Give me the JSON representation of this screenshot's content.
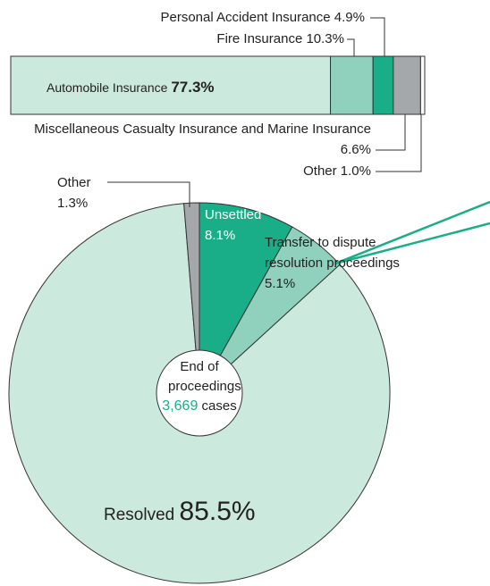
{
  "chart_data": [
    {
      "type": "stacked-bar",
      "series": [
        {
          "name": "Automobile Insurance",
          "color": "#cce9de",
          "values": [
            77.3
          ],
          "value_labels": [
            "77.3%"
          ]
        },
        {
          "name": "Fire Insurance",
          "color": "#8fd1bd",
          "values": [
            10.3
          ],
          "value_labels": [
            "10.3%"
          ]
        },
        {
          "name": "Personal Accident Insurance",
          "color": "#1aae88",
          "values": [
            4.9
          ],
          "value_labels": [
            "4.9%"
          ]
        },
        {
          "name": "Miscellaneous Casualty Insurance and Marine Insurance",
          "color": "#a5a8ab",
          "values": [
            6.6
          ],
          "value_labels": [
            "6.6%"
          ]
        },
        {
          "name": "Other",
          "color": "#ffffff",
          "values": [
            1.0
          ],
          "value_labels": [
            "1.0%"
          ]
        }
      ]
    },
    {
      "type": "pie",
      "categories": [
        "Unsettled",
        "Transfer to dispute resolution proceedings",
        "Resolved",
        "Other"
      ],
      "values": [
        8.1,
        5.1,
        85.5,
        1.3
      ],
      "value_labels": [
        "8.1%",
        "5.1%",
        "85.5%",
        "1.3%"
      ],
      "colors": [
        "#1aae88",
        "#8fd1bd",
        "#cce9de",
        "#a5a8ab"
      ],
      "center_label": "End of proceedings",
      "total": 3669,
      "total_label": "3,669",
      "total_unit": "cases"
    }
  ]
}
